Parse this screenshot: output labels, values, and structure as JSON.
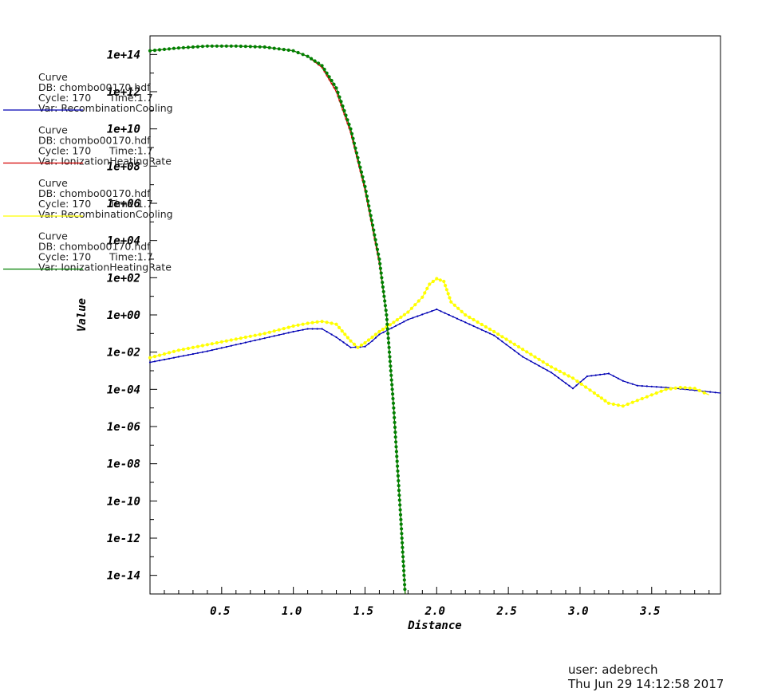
{
  "footer": {
    "user": "user: adebrech",
    "timestamp": "Thu Jun 29 14:12:58 2017"
  },
  "legend": [
    {
      "title": "Curve",
      "db": "DB: chombo00170.hdf",
      "cycle": "Cycle: 170",
      "time": "Time:1.7",
      "var": "Var: RecombinationCooling",
      "color": "#0000b4"
    },
    {
      "title": "Curve",
      "db": "DB: chombo00170.hdf",
      "cycle": "Cycle: 170",
      "time": "Time:1.7",
      "var": "Var: IonizationHeatingRate",
      "color": "#d40000"
    },
    {
      "title": "Curve",
      "db": "DB: chombo00170.hdf",
      "cycle": "Cycle: 170",
      "time": "Time:1.7",
      "var": "Var: RecombinationCooling",
      "color": "#ffff00"
    },
    {
      "title": "Curve",
      "db": "DB: chombo00170.hdf",
      "cycle": "Cycle: 170",
      "time": "Time:1.7",
      "var": "Var: IonizationHeatingRate",
      "color": "#008000"
    }
  ],
  "chart_data": {
    "type": "line",
    "xlabel": "Distance",
    "ylabel": "Value",
    "xlim": [
      0.0,
      3.98
    ],
    "ylim_log10": [
      -15.0,
      15.0
    ],
    "y_log_scale": true,
    "grid": false,
    "x_ticks": [
      "0.5",
      "1.0",
      "1.5",
      "2.0",
      "2.5",
      "3.0",
      "3.5"
    ],
    "x_tick_values": [
      0.5,
      1.0,
      1.5,
      2.0,
      2.5,
      3.0,
      3.5
    ],
    "y_ticks": [
      "1e+14",
      "1e+12",
      "1e+10",
      "1e+08",
      "1e+06",
      "1e+04",
      "1e+02",
      "1e+00",
      "1e-02",
      "1e-04",
      "1e-06",
      "1e-08",
      "1e-10",
      "1e-12",
      "1e-14"
    ],
    "y_tick_exponents": [
      14,
      12,
      10,
      8,
      6,
      4,
      2,
      0,
      -2,
      -4,
      -6,
      -8,
      -10,
      -12,
      -14
    ],
    "series": [
      {
        "color": "#0000b4",
        "markers": "small",
        "x": [
          0.0,
          0.2,
          0.4,
          0.6,
          0.8,
          1.0,
          1.1,
          1.2,
          1.3,
          1.4,
          1.5,
          1.55,
          1.6,
          1.8,
          2.0,
          2.2,
          2.4,
          2.6,
          2.8,
          2.95,
          3.05,
          3.2,
          3.3,
          3.4,
          3.6,
          3.8,
          3.98
        ],
        "log10_y": [
          -2.55,
          -2.25,
          -1.95,
          -1.6,
          -1.25,
          -0.9,
          -0.75,
          -0.75,
          -1.2,
          -1.75,
          -1.7,
          -1.4,
          -1.05,
          -0.25,
          0.3,
          -0.4,
          -1.1,
          -2.25,
          -3.1,
          -3.95,
          -3.3,
          -3.15,
          -3.55,
          -3.8,
          -3.9,
          -4.05,
          -4.2
        ]
      },
      {
        "color": "#d40000",
        "markers": "small",
        "x": [
          0.0,
          0.2,
          0.4,
          0.6,
          0.8,
          1.0,
          1.1,
          1.2,
          1.3,
          1.4,
          1.5,
          1.6,
          1.65,
          1.7,
          1.75,
          1.78
        ],
        "log10_y": [
          14.2,
          14.35,
          14.45,
          14.45,
          14.4,
          14.2,
          13.9,
          13.3,
          12.0,
          9.8,
          6.7,
          2.8,
          0.0,
          -5.0,
          -11.0,
          -15.0
        ]
      },
      {
        "color": "#ffff00",
        "markers": "large",
        "x": [
          0.0,
          0.2,
          0.4,
          0.6,
          0.8,
          1.0,
          1.1,
          1.2,
          1.3,
          1.4,
          1.45,
          1.5,
          1.6,
          1.7,
          1.8,
          1.9,
          1.95,
          2.0,
          2.05,
          2.1,
          2.2,
          2.4,
          2.6,
          2.8,
          2.95,
          3.1,
          3.2,
          3.3,
          3.4,
          3.6,
          3.7,
          3.8,
          3.9
        ],
        "log10_y": [
          -2.3,
          -1.9,
          -1.6,
          -1.3,
          -1.0,
          -0.6,
          -0.45,
          -0.35,
          -0.5,
          -1.4,
          -1.75,
          -1.5,
          -0.9,
          -0.4,
          0.15,
          0.95,
          1.65,
          1.95,
          1.8,
          0.7,
          0.0,
          -0.9,
          -1.85,
          -2.8,
          -3.4,
          -4.2,
          -4.75,
          -4.9,
          -4.6,
          -4.0,
          -3.9,
          -3.95,
          -4.3
        ]
      },
      {
        "color": "#008000",
        "markers": "large",
        "x": [
          0.0,
          0.2,
          0.4,
          0.6,
          0.8,
          1.0,
          1.1,
          1.2,
          1.3,
          1.4,
          1.5,
          1.6,
          1.65,
          1.7,
          1.75,
          1.78
        ],
        "log10_y": [
          14.2,
          14.35,
          14.45,
          14.45,
          14.4,
          14.2,
          13.9,
          13.4,
          12.2,
          10.0,
          6.9,
          3.0,
          0.0,
          -5.0,
          -11.0,
          -15.0
        ]
      }
    ]
  }
}
